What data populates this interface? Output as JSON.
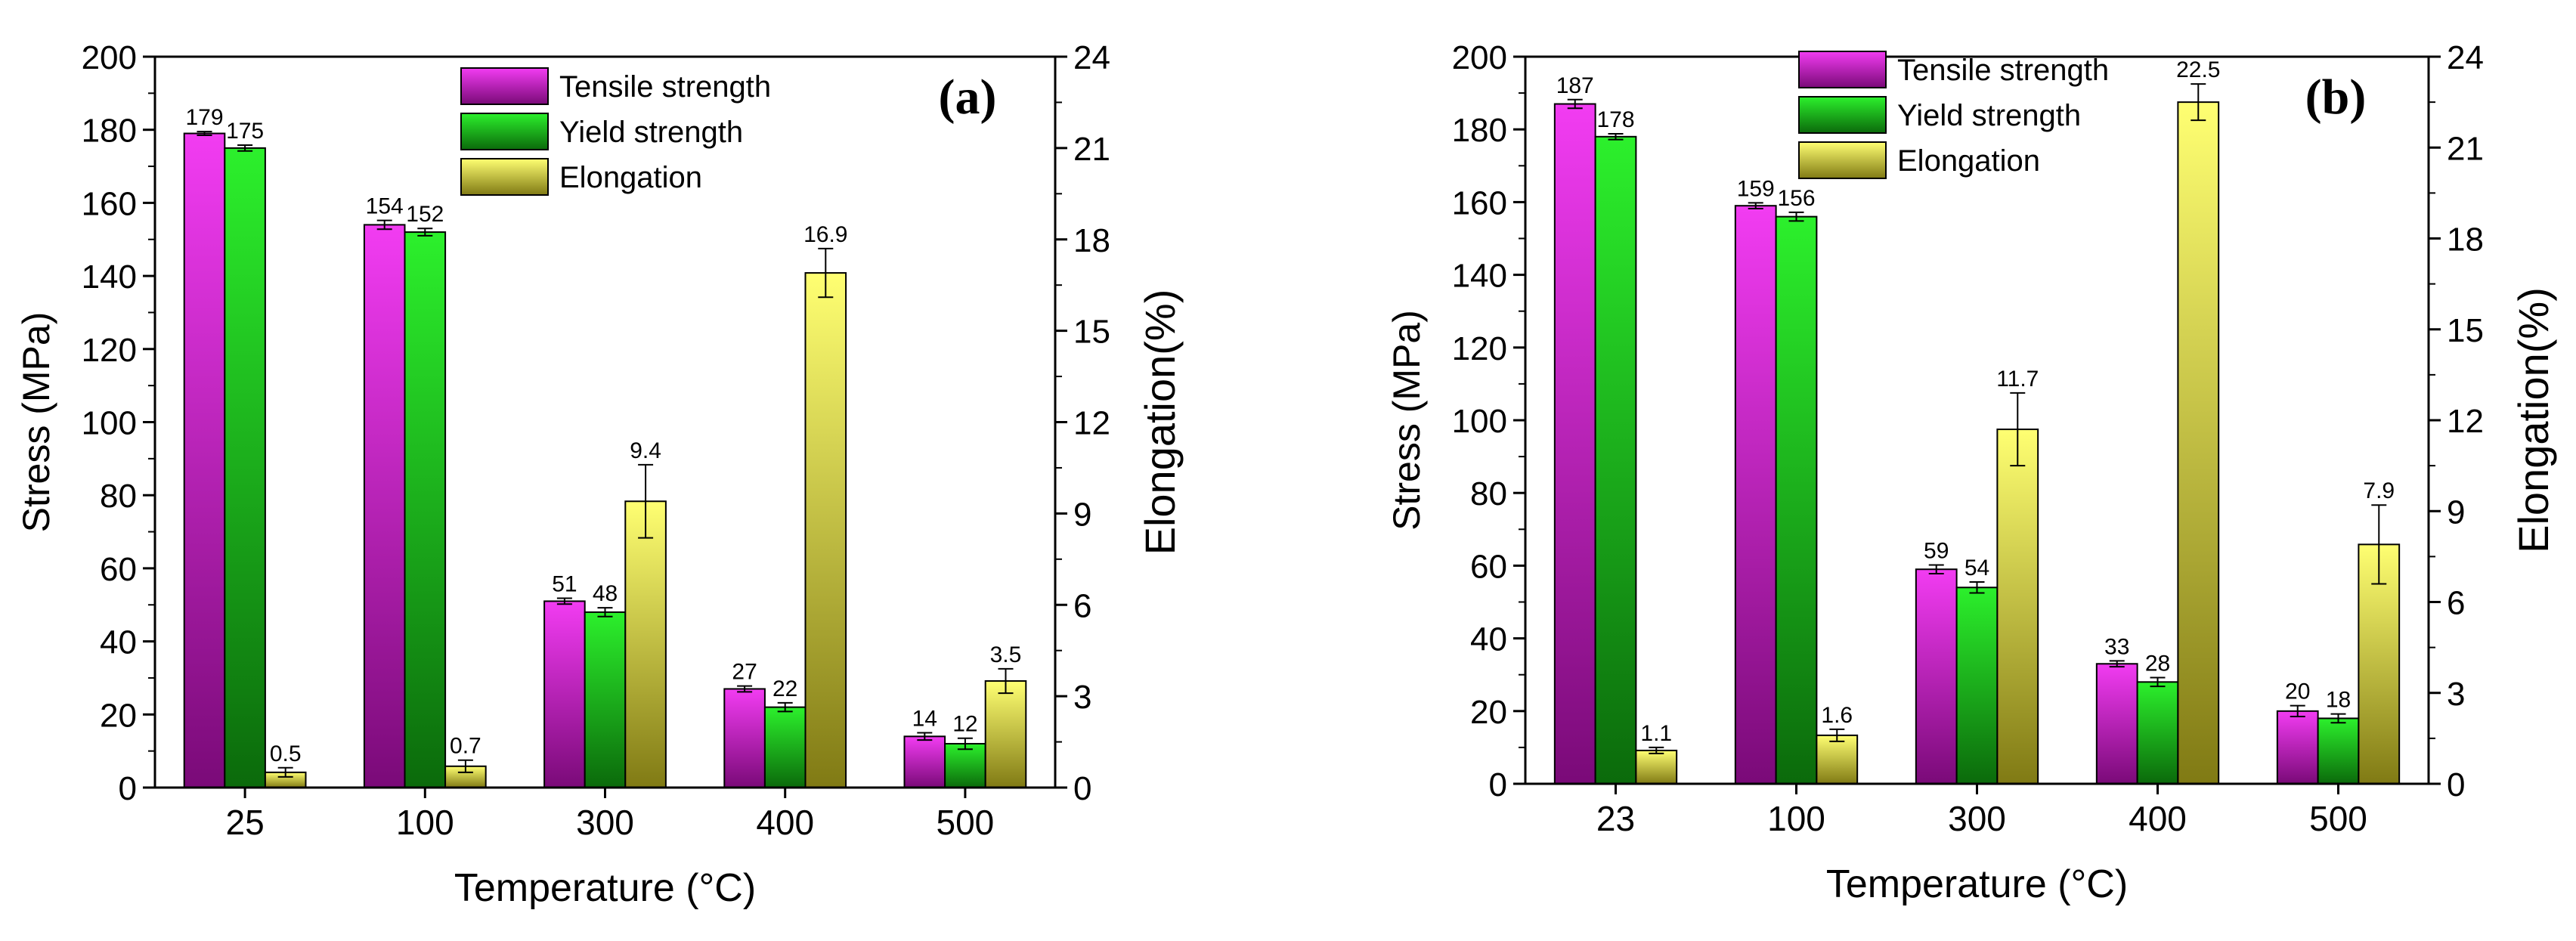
{
  "colors": {
    "tensile_top": "#f23cf2",
    "tensile_bottom": "#7a0a78",
    "yield_top": "#2cf02c",
    "yield_bottom": "#0b6a0b",
    "elong_top": "#ffff72",
    "elong_bottom": "#807a14"
  },
  "chart_data": [
    {
      "type": "bar",
      "panel_label": "(a)",
      "categories": [
        "25",
        "100",
        "300",
        "400",
        "500"
      ],
      "xlabel": "Temperature (°C)",
      "ylabel": "Stress (MPa)",
      "y2label": "Elongation(%)",
      "ylim": [
        0,
        200
      ],
      "y2lim": [
        0,
        24
      ],
      "yticks": [
        "0",
        "20",
        "40",
        "60",
        "80",
        "100",
        "120",
        "140",
        "160",
        "180",
        "200"
      ],
      "y2ticks": [
        "0",
        "3",
        "6",
        "9",
        "12",
        "15",
        "18",
        "21",
        "24"
      ],
      "legend_position": "top-center",
      "series": [
        {
          "name": "Tensile strength",
          "axis": "left",
          "values": [
            179,
            154,
            51,
            27,
            14
          ],
          "errors": [
            0.5,
            1.2,
            0.8,
            0.8,
            1.0
          ],
          "labels": [
            "179",
            "154",
            "51",
            "27",
            "14"
          ]
        },
        {
          "name": "Yield strength",
          "axis": "left",
          "values": [
            175,
            152,
            48,
            22,
            12
          ],
          "errors": [
            0.8,
            1.0,
            1.2,
            1.2,
            1.5
          ],
          "labels": [
            "175",
            "152",
            "48",
            "22",
            "12"
          ]
        },
        {
          "name": "Elongation",
          "axis": "right",
          "values": [
            0.5,
            0.7,
            9.4,
            16.9,
            3.5
          ],
          "errors": [
            0.15,
            0.2,
            1.2,
            0.8,
            0.4
          ],
          "labels": [
            "0.5",
            "0.7",
            "9.4",
            "16.9",
            "3.5"
          ]
        }
      ]
    },
    {
      "type": "bar",
      "panel_label": "(b)",
      "categories": [
        "23",
        "100",
        "300",
        "400",
        "500"
      ],
      "xlabel": "Temperature (°C)",
      "ylabel": "Stress (MPa)",
      "y2label": "Elongation(%)",
      "ylim": [
        0,
        200
      ],
      "y2lim": [
        0,
        24
      ],
      "yticks": [
        "0",
        "20",
        "40",
        "60",
        "80",
        "100",
        "120",
        "140",
        "160",
        "180",
        "200"
      ],
      "y2ticks": [
        "0",
        "3",
        "6",
        "9",
        "12",
        "15",
        "18",
        "21",
        "24"
      ],
      "legend_position": "top-center",
      "series": [
        {
          "name": "Tensile strength",
          "axis": "left",
          "values": [
            187,
            159,
            59,
            33,
            20
          ],
          "errors": [
            1.2,
            0.8,
            1.2,
            0.8,
            1.5
          ],
          "labels": [
            "187",
            "159",
            "59",
            "33",
            "20"
          ]
        },
        {
          "name": "Yield strength",
          "axis": "left",
          "values": [
            178,
            156,
            54,
            28,
            18
          ],
          "errors": [
            0.8,
            1.2,
            1.5,
            1.2,
            1.2
          ],
          "labels": [
            "178",
            "156",
            "54",
            "28",
            "18"
          ]
        },
        {
          "name": "Elongation",
          "axis": "right",
          "values": [
            1.1,
            1.6,
            11.7,
            22.5,
            7.9
          ],
          "errors": [
            0.1,
            0.2,
            1.2,
            0.6,
            1.3
          ],
          "labels": [
            "1.1",
            "1.6",
            "11.7",
            "22.5",
            "7.9"
          ]
        }
      ]
    }
  ]
}
